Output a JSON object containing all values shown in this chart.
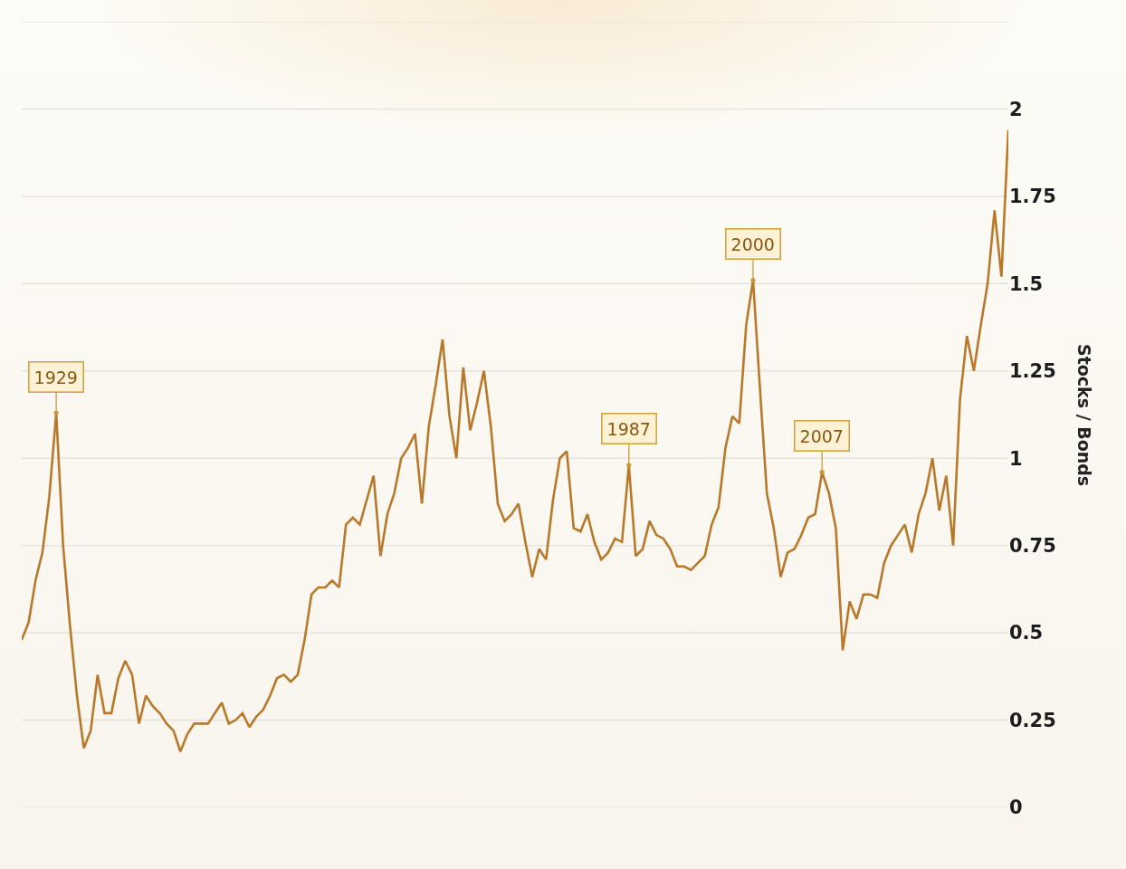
{
  "chart_data": {
    "type": "line",
    "ylabel": "Stocks / Bonds",
    "categories": [
      null,
      null,
      null,
      null,
      null,
      null,
      null,
      null,
      null,
      null,
      null,
      null,
      null,
      null,
      null,
      null,
      null,
      null,
      null,
      null,
      null,
      null,
      null,
      null,
      null,
      null,
      null,
      null,
      null,
      null,
      null,
      null,
      null,
      null,
      null,
      null,
      null,
      null,
      null,
      null,
      null,
      null,
      null,
      null,
      null,
      null,
      null,
      null,
      null,
      null,
      null,
      null,
      null,
      null,
      null,
      null,
      null,
      null,
      null,
      null,
      null,
      null,
      null,
      null,
      null,
      null,
      null,
      null,
      null,
      null,
      null,
      null,
      null,
      null,
      null,
      null,
      null,
      null,
      null,
      null,
      null,
      null,
      null,
      null,
      null,
      null,
      null,
      null,
      null,
      null,
      null,
      null,
      null,
      null,
      null,
      null,
      null,
      null,
      null,
      null,
      null,
      null,
      null,
      null,
      null,
      null,
      null,
      null,
      null,
      null,
      null,
      null,
      null,
      null,
      null,
      null,
      null,
      null,
      null,
      null,
      null,
      null,
      null,
      null,
      null,
      null,
      null,
      null,
      null,
      null,
      null,
      null,
      null,
      null,
      null,
      null,
      null,
      null,
      null,
      null,
      null,
      null,
      null,
      null
    ],
    "values": [
      0.48,
      0.53,
      0.65,
      0.73,
      0.89,
      1.13,
      0.75,
      0.52,
      0.32,
      0.17,
      0.22,
      0.38,
      0.27,
      0.27,
      0.37,
      0.42,
      0.38,
      0.24,
      0.32,
      0.29,
      0.27,
      0.24,
      0.22,
      0.16,
      0.21,
      0.24,
      0.24,
      0.24,
      0.27,
      0.3,
      0.24,
      0.25,
      0.27,
      0.23,
      0.26,
      0.28,
      0.32,
      0.37,
      0.38,
      0.36,
      0.38,
      0.48,
      0.61,
      0.63,
      0.63,
      0.65,
      0.63,
      0.81,
      0.83,
      0.81,
      0.88,
      0.95,
      0.72,
      0.84,
      0.9,
      1.0,
      1.03,
      1.07,
      0.87,
      1.09,
      1.21,
      1.34,
      1.12,
      1.0,
      1.26,
      1.08,
      1.16,
      1.25,
      1.09,
      0.87,
      0.82,
      0.84,
      0.87,
      0.76,
      0.66,
      0.74,
      0.71,
      0.88,
      1.0,
      1.02,
      0.8,
      0.79,
      0.84,
      0.76,
      0.71,
      0.73,
      0.77,
      0.76,
      0.98,
      0.72,
      0.74,
      0.82,
      0.78,
      0.77,
      0.74,
      0.69,
      0.69,
      0.68,
      0.7,
      0.72,
      0.81,
      0.86,
      1.03,
      1.12,
      1.1,
      1.38,
      1.51,
      1.2,
      0.9,
      0.8,
      0.66,
      0.73,
      0.74,
      0.78,
      0.83,
      0.84,
      0.96,
      0.9,
      0.8,
      0.45,
      0.59,
      0.54,
      0.61,
      0.61,
      0.6,
      0.7,
      0.75,
      0.78,
      0.81,
      0.73,
      0.84,
      0.9,
      1.0,
      0.85,
      0.95,
      0.75,
      1.17,
      1.35,
      1.25,
      1.38,
      1.5,
      1.71,
      1.52,
      1.94
    ],
    "color": "#b8792a",
    "ylim": [
      0,
      2.25
    ],
    "yticks": [
      0,
      0.25,
      0.5,
      0.75,
      1,
      1.25,
      1.5,
      1.75,
      2,
      {
        "value": 2.25,
        "label": null
      }
    ],
    "grid": "y",
    "tick_labels": "y",
    "annotations": [
      {
        "text": "1929",
        "y": 1.13
      },
      {
        "text": "1987",
        "y": 0.98
      },
      {
        "text": "2000",
        "y": 1.51
      },
      {
        "text": "2007",
        "y": 0.96
      }
    ]
  }
}
